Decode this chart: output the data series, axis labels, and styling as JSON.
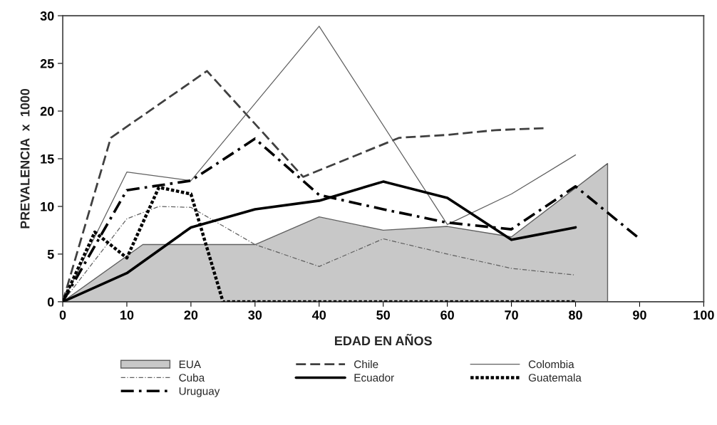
{
  "chart_data": {
    "type": "line",
    "xlabel": "EDAD EN AÑOS",
    "ylabel": "PREVALENCIA  x  1000",
    "xlim": [
      0,
      100
    ],
    "xticks": [
      0,
      10,
      20,
      30,
      40,
      50,
      60,
      70,
      80,
      90,
      100
    ],
    "ylim": [
      0,
      30
    ],
    "yticks": [
      0,
      5,
      10,
      15,
      20,
      25,
      30
    ],
    "grid": false,
    "legend": "bottom",
    "marker": "none",
    "series": [
      {
        "name": "EUA",
        "type": "area",
        "color": "#c8c8c8",
        "x": [
          0,
          12.5,
          30,
          40,
          50,
          60,
          70,
          85,
          85
        ],
        "values": [
          0,
          6,
          6,
          8.9,
          7.5,
          7.9,
          6.8,
          14.5,
          0
        ]
      },
      {
        "name": "Chile",
        "color": "#404040",
        "line_style": "dashed",
        "x": [
          0,
          7.5,
          22.5,
          37.5,
          52.5,
          60,
          67.5,
          75
        ],
        "values": [
          0,
          17.2,
          24.2,
          13.1,
          17.2,
          17.5,
          18,
          18.2
        ]
      },
      {
        "name": "Colombia",
        "color": "#606060",
        "line_style": "solid",
        "x": [
          0,
          10,
          20,
          40,
          60,
          70,
          80
        ],
        "values": [
          0,
          13.6,
          12.7,
          28.9,
          8.1,
          11.3,
          15.4
        ]
      },
      {
        "name": "Cuba",
        "color": "#606060",
        "line_style": "dashdot",
        "x": [
          0,
          10,
          15,
          20,
          30,
          40,
          50,
          60,
          70,
          80
        ],
        "values": [
          0,
          8.7,
          10,
          9.9,
          6,
          3.7,
          6.6,
          5,
          3.5,
          2.8
        ]
      },
      {
        "name": "Ecuador",
        "color": "#000000",
        "line_style": "solid",
        "x": [
          0,
          10,
          20,
          30,
          40,
          50,
          60,
          70,
          80
        ],
        "values": [
          0,
          3,
          7.8,
          9.7,
          10.6,
          12.6,
          10.9,
          6.5,
          7.8
        ]
      },
      {
        "name": "Guatemala",
        "color": "#000000",
        "line_style": "dotted",
        "x": [
          0,
          5,
          10,
          15,
          20,
          25,
          80
        ],
        "values": [
          0,
          7.3,
          4.6,
          12,
          11.3,
          0,
          0
        ]
      },
      {
        "name": "Uruguay",
        "color": "#000000",
        "line_style": "dashdot",
        "x": [
          0,
          10,
          20,
          30,
          40,
          50,
          60,
          70,
          80,
          90
        ],
        "values": [
          0,
          11.7,
          12.7,
          17.1,
          11.2,
          9.7,
          8.3,
          7.6,
          12.1,
          6.6
        ]
      }
    ]
  }
}
